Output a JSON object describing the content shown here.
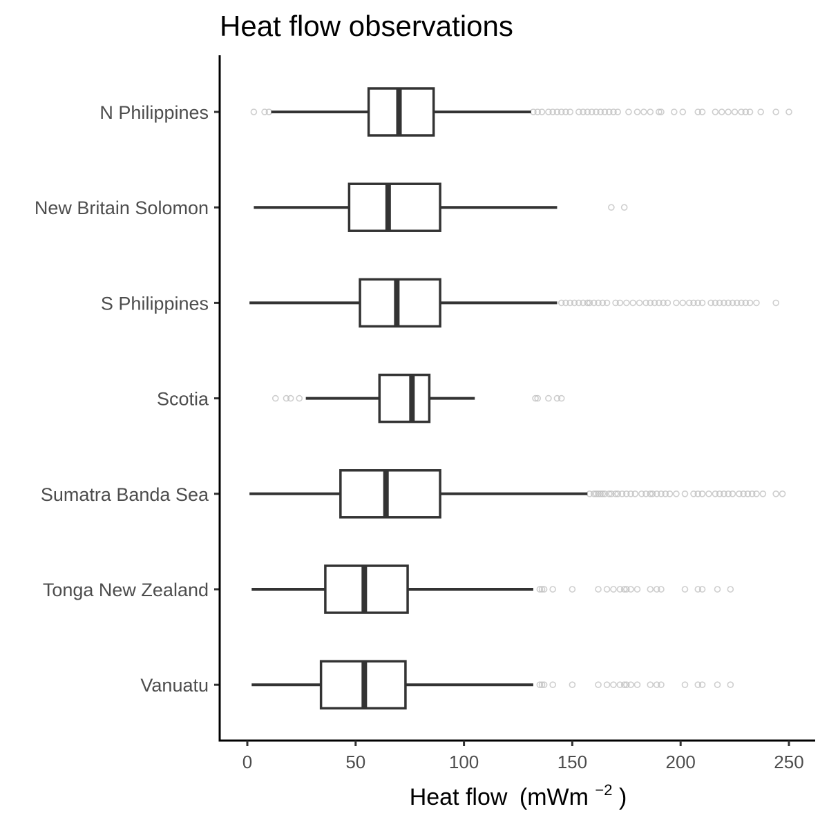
{
  "chart_data": {
    "type": "boxplot",
    "orientation": "horizontal",
    "title": "Heat flow observations",
    "xlabel": "Heat flow",
    "xlabel_unit": "(mWm",
    "xlabel_unit_exp": "−2",
    "xlabel_unit_close": ")",
    "xlim": [
      -12,
      262
    ],
    "xticks": [
      0,
      50,
      100,
      150,
      200,
      250
    ],
    "xtick_labels": [
      "0",
      "50",
      "100",
      "150",
      "200",
      "250"
    ],
    "grid": false,
    "categories": [
      "N Philippines",
      "New Britain Solomon",
      "S Philippines",
      "Scotia",
      "Sumatra Banda Sea",
      "Tonga New Zealand",
      "Vanuatu"
    ],
    "boxes": [
      {
        "category": "N Philippines",
        "whisker_low": 11,
        "q1": 56,
        "median": 70,
        "q3": 86,
        "whisker_high": 131,
        "outliers": [
          3,
          8,
          10,
          132,
          134,
          136,
          139,
          141,
          143,
          145,
          147,
          149,
          153,
          155,
          157,
          159,
          161,
          163,
          165,
          167,
          169,
          171,
          176,
          180,
          183,
          186,
          190,
          191,
          197,
          201,
          208,
          210,
          216,
          219,
          222,
          225,
          228,
          230,
          232,
          237,
          244,
          250
        ]
      },
      {
        "category": "New Britain Solomon",
        "whisker_low": 3,
        "q1": 47,
        "median": 65,
        "q3": 89,
        "whisker_high": 143,
        "outliers": [
          168,
          174
        ]
      },
      {
        "category": "S Philippines",
        "whisker_low": 1,
        "q1": 52,
        "median": 69,
        "q3": 89,
        "whisker_high": 143,
        "outliers": [
          145,
          147,
          149,
          151,
          153,
          155,
          157,
          158,
          160,
          162,
          164,
          166,
          170,
          172,
          175,
          178,
          181,
          184,
          186,
          188,
          190,
          192,
          194,
          198,
          201,
          204,
          206,
          208,
          210,
          214,
          216,
          218,
          220,
          222,
          224,
          226,
          228,
          230,
          232,
          235,
          244
        ]
      },
      {
        "category": "Scotia",
        "whisker_low": 27,
        "q1": 61,
        "median": 76,
        "q3": 84,
        "whisker_high": 105,
        "outliers": [
          13,
          18,
          20,
          24,
          133,
          134,
          139,
          143,
          145
        ]
      },
      {
        "category": "Sumatra Banda Sea",
        "whisker_low": 1,
        "q1": 43,
        "median": 64,
        "q3": 89,
        "whisker_high": 157,
        "outliers": [
          158,
          160,
          161,
          162,
          163,
          164,
          165,
          167,
          168,
          170,
          171,
          173,
          175,
          177,
          179,
          182,
          184,
          186,
          187,
          189,
          191,
          193,
          195,
          198,
          202,
          206,
          208,
          210,
          213,
          216,
          218,
          220,
          222,
          224,
          227,
          229,
          231,
          233,
          235,
          238,
          244,
          247
        ]
      },
      {
        "category": "Tonga New Zealand",
        "whisker_low": 2,
        "q1": 36,
        "median": 54,
        "q3": 74,
        "whisker_high": 132,
        "outliers": [
          135,
          136,
          137,
          141,
          150,
          162,
          166,
          169,
          172,
          174,
          175,
          177,
          180,
          186,
          189,
          191,
          202,
          208,
          210,
          217,
          223
        ]
      },
      {
        "category": "Vanuatu",
        "whisker_low": 2,
        "q1": 34,
        "median": 54,
        "q3": 73,
        "whisker_high": 132,
        "outliers": [
          135,
          136,
          137,
          141,
          150,
          162,
          166,
          169,
          172,
          174,
          175,
          177,
          180,
          186,
          189,
          191,
          202,
          208,
          210,
          217,
          223
        ]
      }
    ],
    "colors": {
      "box_stroke": "#333333",
      "outlier": "#bdbdbd",
      "axis": "#000000",
      "tick_label": "#4d4d4d"
    }
  }
}
